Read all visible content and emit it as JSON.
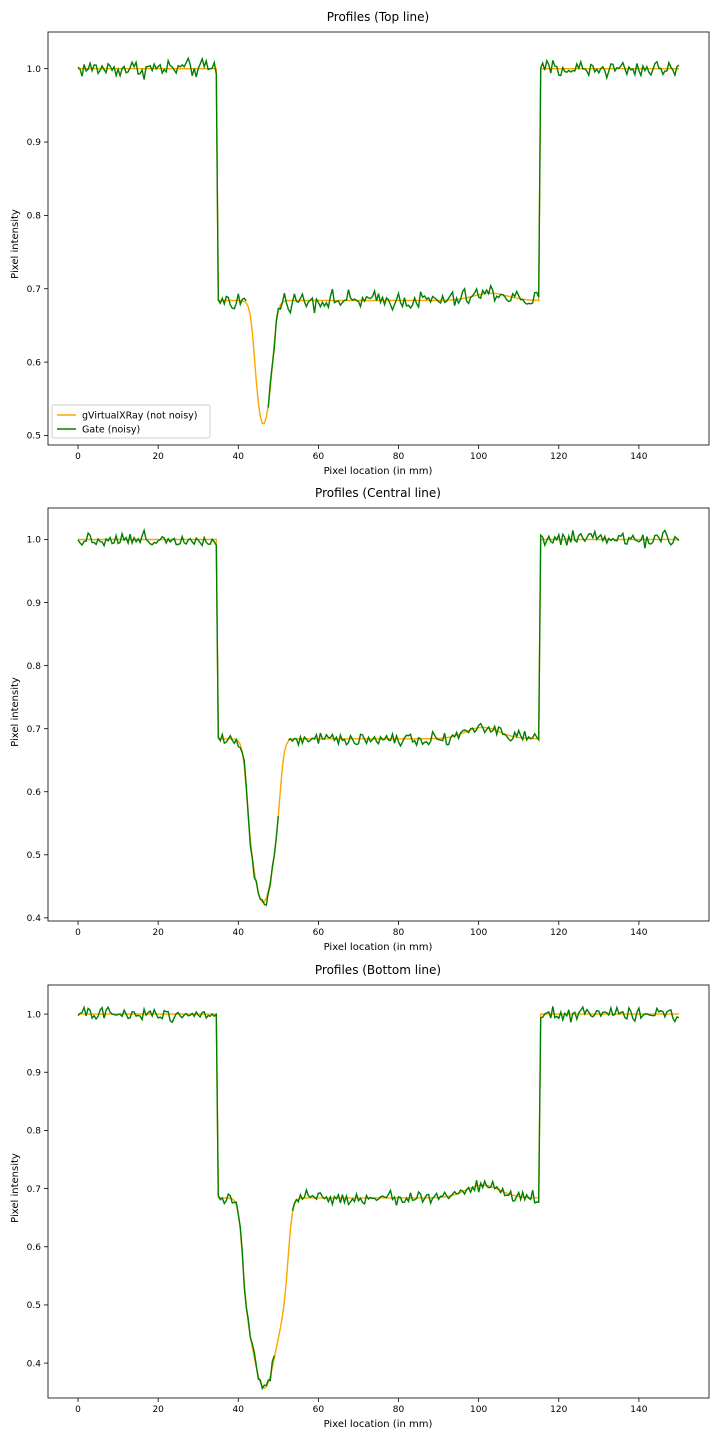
{
  "chart_data": [
    {
      "type": "line",
      "title": "Profiles (Top line)",
      "xlabel": "Pixel location (in mm)",
      "ylabel": "Pixel intensity",
      "xlim": [
        -7.5,
        157.5
      ],
      "ylim": [
        0.487,
        1.05
      ],
      "xticks": [
        0,
        20,
        40,
        60,
        80,
        100,
        120,
        140
      ],
      "yticks": [
        0.5,
        0.6,
        0.7,
        0.8,
        0.9,
        1.0
      ],
      "grid": false,
      "legend": {
        "placement": "lower-left",
        "entries": [
          "gVirtualXRay (not noisy)",
          "Gate (noisy)"
        ]
      },
      "profile": {
        "plateau": 0.684,
        "dip_min": 0.512,
        "dip_center": 46.2,
        "dip_left": 43.8,
        "dip_right": 49.0,
        "dip_sigma": 1.5,
        "edge_left": 34.8,
        "edge_right": 115.0,
        "bump_center": 103,
        "bump_amp": 0.01,
        "noise": 0.009,
        "green_gaps": [
          [
            42.5,
            47.0
          ]
        ]
      },
      "series": [
        {
          "name": "gVirtualXRay (not noisy)",
          "color": "#ffa500"
        },
        {
          "name": "Gate (noisy)",
          "color": "#008000"
        }
      ]
    },
    {
      "type": "line",
      "title": "Profiles (Central line)",
      "xlabel": "Pixel location (in mm)",
      "ylabel": "Pixel intensity",
      "xlim": [
        -7.5,
        157.5
      ],
      "ylim": [
        0.395,
        1.05
      ],
      "xticks": [
        0,
        20,
        40,
        60,
        80,
        100,
        120,
        140
      ],
      "yticks": [
        0.4,
        0.5,
        0.6,
        0.7,
        0.8,
        0.9,
        1.0
      ],
      "grid": false,
      "profile": {
        "plateau": 0.684,
        "dip_min": 0.424,
        "dip_center": 46.2,
        "dip_left": 42.0,
        "dip_right": 50.5,
        "dip_sigma": 2.0,
        "edge_left": 34.8,
        "edge_right": 115.0,
        "bump_center": 101,
        "bump_amp": 0.018,
        "noise": 0.008,
        "green_gaps": [
          [
            50.5,
            52.0
          ]
        ]
      },
      "series": [
        {
          "name": "gVirtualXRay (not noisy)",
          "color": "#ffa500"
        },
        {
          "name": "Gate (noisy)",
          "color": "#008000"
        }
      ]
    },
    {
      "type": "line",
      "title": "Profiles (Bottom line)",
      "xlabel": "Pixel location (in mm)",
      "ylabel": "Pixel intensity",
      "xlim": [
        -7.5,
        157.5
      ],
      "ylim": [
        0.34,
        1.05
      ],
      "xticks": [
        0,
        20,
        40,
        60,
        80,
        100,
        120,
        140
      ],
      "yticks": [
        0.4,
        0.5,
        0.6,
        0.7,
        0.8,
        0.9,
        1.0
      ],
      "grid": false,
      "profile": {
        "plateau": 0.684,
        "dip_min": 0.357,
        "dip_center": 46.5,
        "dip_left": 41.0,
        "dip_right": 52.5,
        "dip_sigma": 2.4,
        "edge_left": 34.8,
        "edge_right": 115.0,
        "bump_center": 101,
        "bump_amp": 0.022,
        "noise": 0.008,
        "green_gaps": [
          [
            49.5,
            53.0
          ]
        ]
      },
      "series": [
        {
          "name": "gVirtualXRay (not noisy)",
          "color": "#ffa500"
        },
        {
          "name": "Gate (noisy)",
          "color": "#008000"
        }
      ]
    }
  ]
}
